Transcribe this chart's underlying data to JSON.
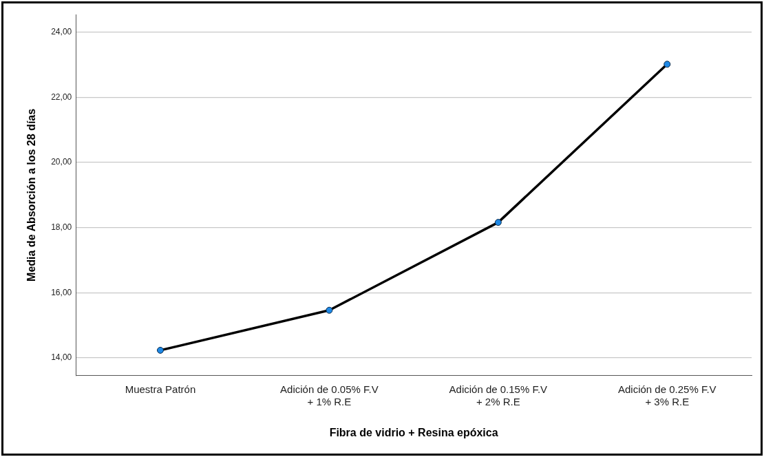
{
  "chart_data": {
    "type": "line",
    "xlabel": "Fibra de vidrio + Resina epóxica",
    "ylabel": "Media de Absorción a los 28 días",
    "categories": [
      "Muestra Patrón",
      "Adición de 0.05% F.V\n+ 1% R.E",
      "Adición de 0.15% F.V\n+ 2% R.E",
      "Adición de 0.25% F.V\n+ 3% R.E"
    ],
    "series": [
      {
        "color": "#000000",
        "values": [
          14.23,
          15.46,
          18.16,
          23.02
        ]
      }
    ],
    "ylim": [
      13.45,
      24.55
    ],
    "yticks": [
      {
        "value": 14,
        "label": "14,00"
      },
      {
        "value": 16,
        "label": "16,00"
      },
      {
        "value": 18,
        "label": "18,00"
      },
      {
        "value": 20,
        "label": "20,00"
      },
      {
        "value": 22,
        "label": "22,00"
      },
      {
        "value": 24,
        "label": "24,00"
      }
    ],
    "grid": "y",
    "legend": false,
    "marker": "circle",
    "line_style": "solid"
  }
}
